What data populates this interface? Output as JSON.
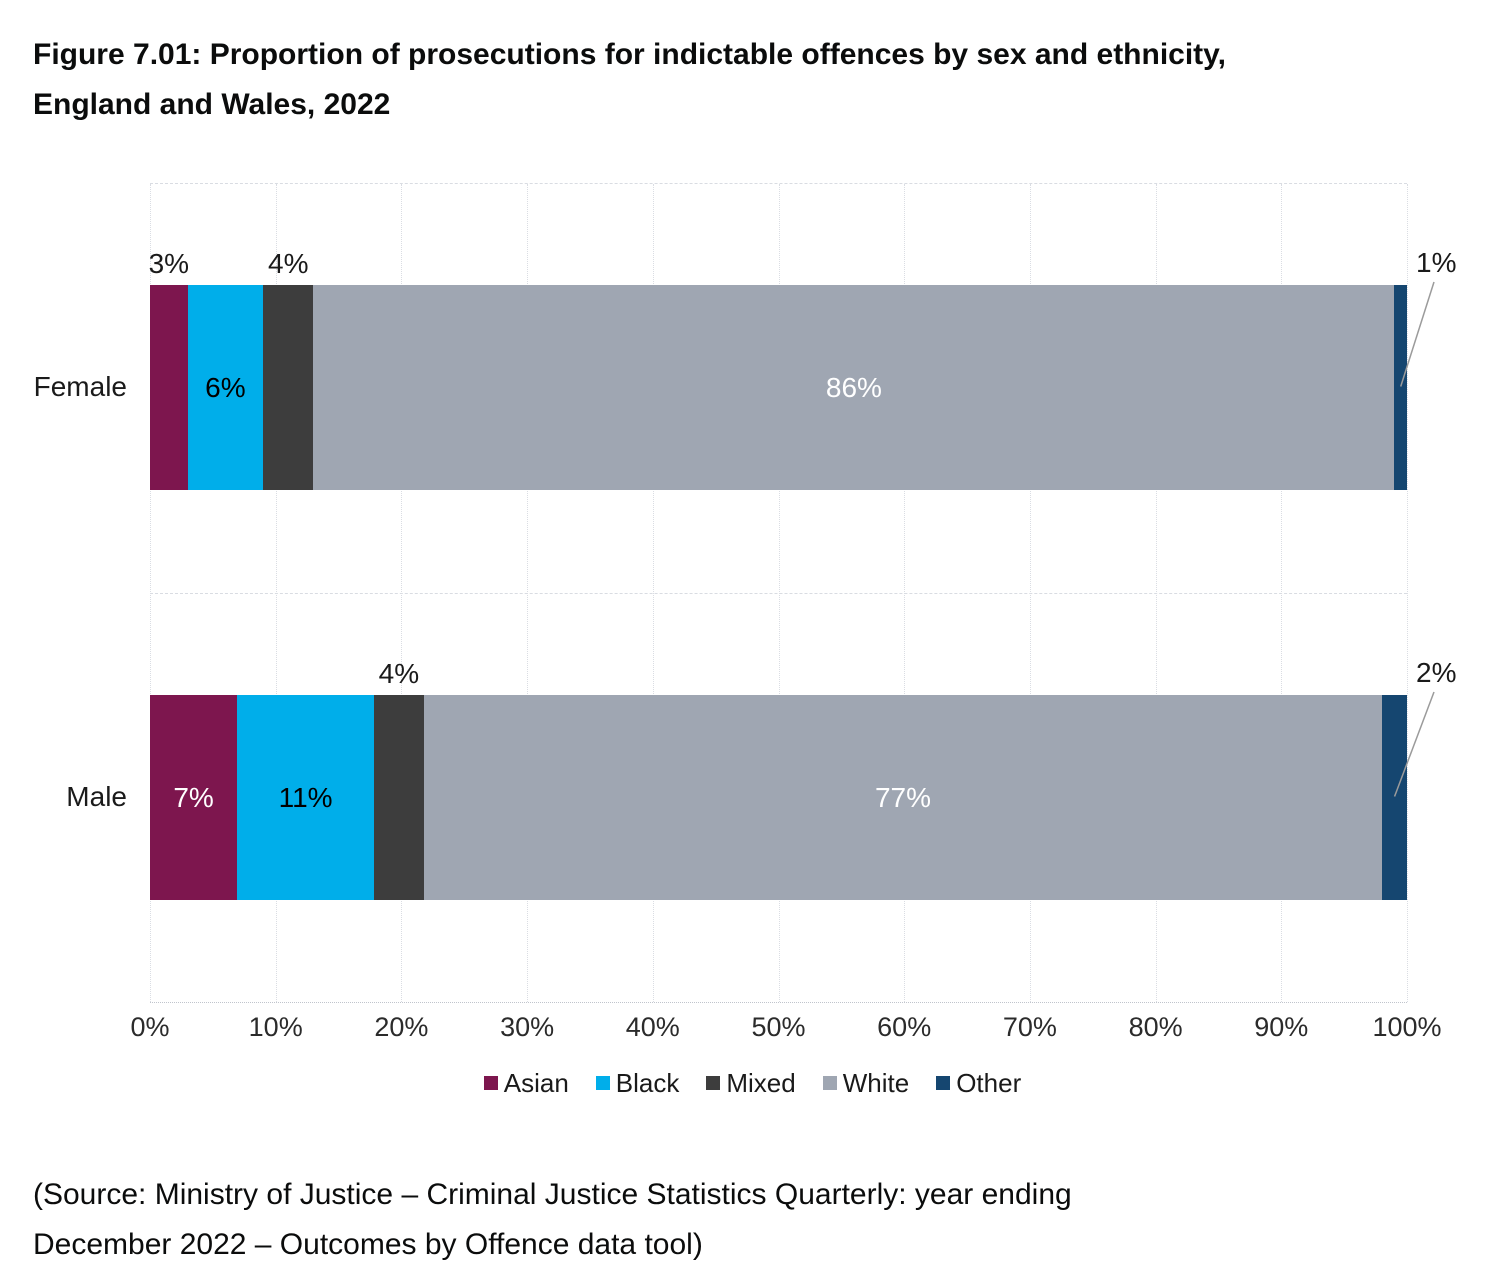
{
  "page": {
    "title_lines": [
      "Figure 7.01: Proportion of prosecutions for indictable offences by sex and ethnicity,",
      "England and Wales, 2022"
    ],
    "source_lines": [
      "(Source: Ministry of Justice – Criminal Justice Statistics Quarterly: year ending",
      "December 2022 – Outcomes by Offence data tool)"
    ]
  },
  "colors": {
    "Asian": "#7D164E",
    "Black": "#00AEEA",
    "Mixed": "#3D3D3D",
    "White": "#9FA6B2",
    "Other": "#154670",
    "grid": "#DADDE3",
    "axis_text": "#2B2B2B",
    "callout_line": "#9B9B9B"
  },
  "chart_data": {
    "type": "bar",
    "orientation": "horizontal",
    "stacked": true,
    "unit": "%",
    "title": "Figure 7.01: Proportion of prosecutions for indictable offences by sex and ethnicity, England and Wales, 2022",
    "xlabel": "",
    "ylabel": "",
    "xlim": [
      0,
      100
    ],
    "grid": true,
    "legend_position": "bottom",
    "x_ticks": [
      "0%",
      "10%",
      "20%",
      "30%",
      "40%",
      "50%",
      "60%",
      "70%",
      "80%",
      "90%",
      "100%"
    ],
    "categories": [
      "Female",
      "Male"
    ],
    "series": [
      {
        "name": "Asian",
        "values": [
          3,
          7
        ]
      },
      {
        "name": "Black",
        "values": [
          6,
          11
        ]
      },
      {
        "name": "Mixed",
        "values": [
          4,
          4
        ]
      },
      {
        "name": "White",
        "values": [
          86,
          77
        ]
      },
      {
        "name": "Other",
        "values": [
          1,
          2
        ]
      }
    ],
    "legend": [
      "Asian",
      "Black",
      "Mixed",
      "White",
      "Other"
    ],
    "bars": [
      {
        "category": "Female",
        "segments": [
          {
            "series": "Asian",
            "value": 3,
            "label": "3%",
            "label_placement": "above"
          },
          {
            "series": "Black",
            "value": 6,
            "label": "6%",
            "label_placement": "inside",
            "label_color": "#000000"
          },
          {
            "series": "Mixed",
            "value": 4,
            "label": "4%",
            "label_placement": "above"
          },
          {
            "series": "White",
            "value": 86,
            "label": "86%",
            "label_placement": "inside",
            "label_color": "#FFFFFF"
          },
          {
            "series": "Other",
            "value": 1,
            "label": "1%",
            "label_placement": "callout"
          }
        ]
      },
      {
        "category": "Male",
        "segments": [
          {
            "series": "Asian",
            "value": 7,
            "label": "7%",
            "label_placement": "inside",
            "label_color": "#FFFFFF"
          },
          {
            "series": "Black",
            "value": 11,
            "label": "11%",
            "label_placement": "inside",
            "label_color": "#000000"
          },
          {
            "series": "Mixed",
            "value": 4,
            "label": "4%",
            "label_placement": "above"
          },
          {
            "series": "White",
            "value": 77,
            "label": "77%",
            "label_placement": "inside",
            "label_color": "#FFFFFF"
          },
          {
            "series": "Other",
            "value": 2,
            "label": "2%",
            "label_placement": "callout"
          }
        ]
      }
    ]
  }
}
